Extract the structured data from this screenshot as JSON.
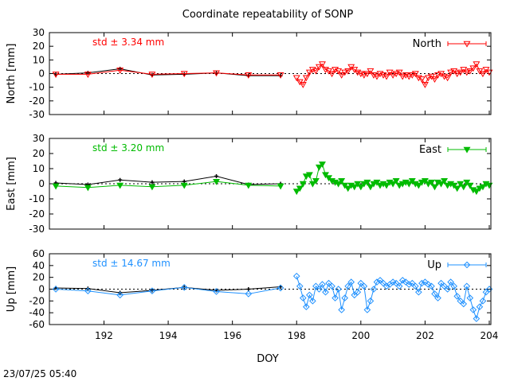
{
  "title": "Coordinate repeatability of SONP",
  "timestamp": "23/07/25 05:40",
  "xlabel": "DOY",
  "colors": {
    "north": "#ff0000",
    "east": "#00bb00",
    "up": "#1e90ff",
    "reference": "#000000"
  },
  "chart_data": [
    {
      "type": "line",
      "name": "North",
      "ylabel": "North [mm]",
      "legend": "North",
      "legend_position": "top-right",
      "std_label": "std ± 3.34 mm",
      "xlim": [
        190.3,
        204.05
      ],
      "ylim": [
        -30,
        30
      ],
      "xticks": [
        192,
        194,
        196,
        198,
        200,
        202,
        204
      ],
      "yticks": [
        -30,
        -20,
        -10,
        0,
        10,
        20,
        30
      ],
      "marker": "triangle-down",
      "reference_series": {
        "x": [
          190.5,
          191.5,
          192.5,
          193.5,
          194.5,
          195.5,
          196.5,
          197.5
        ],
        "y": [
          -0.5,
          0.5,
          3.5,
          -1.0,
          -0.5,
          0.5,
          -1.5,
          -1.5
        ]
      },
      "sparse_series": {
        "x": [
          190.5,
          191.5,
          192.5,
          193.5,
          194.5,
          195.5,
          196.5,
          197.5
        ],
        "y": [
          -0.5,
          -0.5,
          2.5,
          -0.5,
          0.0,
          0.5,
          -1.0,
          -1.0
        ]
      },
      "dense_series": {
        "x": [
          198.0,
          198.1,
          198.2,
          198.3,
          198.4,
          198.5,
          198.6,
          198.7,
          198.8,
          198.9,
          199.0,
          199.1,
          199.2,
          199.3,
          199.4,
          199.5,
          199.6,
          199.7,
          199.8,
          199.9,
          200.0,
          200.1,
          200.2,
          200.3,
          200.4,
          200.5,
          200.6,
          200.7,
          200.8,
          200.9,
          201.0,
          201.1,
          201.2,
          201.3,
          201.4,
          201.5,
          201.6,
          201.7,
          201.8,
          201.9,
          202.0,
          202.1,
          202.2,
          202.3,
          202.4,
          202.5,
          202.6,
          202.7,
          202.8,
          202.9,
          203.0,
          203.1,
          203.2,
          203.3,
          203.4,
          203.5,
          203.6,
          203.7,
          203.8,
          203.9,
          204.0
        ],
        "y": [
          -3,
          -6,
          -8,
          -3,
          1,
          3,
          2,
          5,
          7,
          3,
          2,
          0,
          3,
          2,
          -1,
          1,
          2,
          5,
          3,
          1,
          0,
          -1,
          0,
          2,
          -1,
          -2,
          0,
          -1,
          -2,
          1,
          -1,
          0,
          1,
          -2,
          -1,
          -2,
          -1,
          0,
          -3,
          -4,
          -8,
          -3,
          -2,
          -4,
          -1,
          0,
          -2,
          -3,
          1,
          2,
          0,
          1,
          3,
          1,
          2,
          4,
          7,
          2,
          0,
          3,
          1
        ]
      }
    },
    {
      "type": "line",
      "name": "East",
      "ylabel": "East [mm]",
      "legend": "East",
      "legend_position": "top-right",
      "std_label": "std ± 3.20 mm",
      "xlim": [
        190.3,
        204.05
      ],
      "ylim": [
        -30,
        30
      ],
      "xticks": [
        192,
        194,
        196,
        198,
        200,
        202,
        204
      ],
      "yticks": [
        -30,
        -20,
        -10,
        0,
        10,
        20,
        30
      ],
      "marker": "triangle-down-filled",
      "reference_series": {
        "x": [
          190.5,
          191.5,
          192.5,
          193.5,
          194.5,
          195.5,
          196.5,
          197.5
        ],
        "y": [
          0.5,
          -0.5,
          2.5,
          1.0,
          1.5,
          5.0,
          -0.5,
          0.0
        ]
      },
      "sparse_series": {
        "x": [
          190.5,
          191.5,
          192.5,
          193.5,
          194.5,
          195.5,
          196.5,
          197.5
        ],
        "y": [
          -1.5,
          -2.5,
          -1.0,
          -2.0,
          -1.0,
          1.5,
          -1.0,
          -1.5
        ]
      },
      "dense_series": {
        "x": [
          198.0,
          198.1,
          198.2,
          198.3,
          198.4,
          198.5,
          198.6,
          198.7,
          198.8,
          198.9,
          199.0,
          199.1,
          199.2,
          199.3,
          199.4,
          199.5,
          199.6,
          199.7,
          199.8,
          199.9,
          200.0,
          200.1,
          200.2,
          200.3,
          200.4,
          200.5,
          200.6,
          200.7,
          200.8,
          200.9,
          201.0,
          201.1,
          201.2,
          201.3,
          201.4,
          201.5,
          201.6,
          201.7,
          201.8,
          201.9,
          202.0,
          202.1,
          202.2,
          202.3,
          202.4,
          202.5,
          202.6,
          202.7,
          202.8,
          202.9,
          203.0,
          203.1,
          203.2,
          203.3,
          203.4,
          203.5,
          203.6,
          203.7,
          203.8,
          203.9,
          204.0
        ],
        "y": [
          -5,
          -3,
          0,
          5,
          6,
          0,
          2,
          11,
          13,
          6,
          4,
          2,
          1,
          0,
          2,
          -1,
          -3,
          -1,
          -2,
          0,
          -2,
          0,
          1,
          -2,
          0,
          1,
          -1,
          0,
          -1,
          1,
          0,
          2,
          -1,
          0,
          1,
          0,
          2,
          0,
          -1,
          1,
          2,
          0,
          1,
          -2,
          1,
          0,
          2,
          -1,
          0,
          -1,
          -3,
          0,
          -2,
          1,
          -1,
          -4,
          -5,
          -3,
          -2,
          0,
          -1
        ]
      }
    },
    {
      "type": "line",
      "name": "Up",
      "ylabel": "Up [mm]",
      "legend": "Up",
      "legend_position": "top-right",
      "std_label": "std ± 14.67 mm",
      "xlim": [
        190.3,
        204.05
      ],
      "ylim": [
        -60,
        60
      ],
      "xticks": [
        192,
        194,
        196,
        198,
        200,
        202,
        204
      ],
      "yticks": [
        -60,
        -40,
        -20,
        0,
        20,
        40,
        60
      ],
      "marker": "diamond-open",
      "reference_series": {
        "x": [
          190.5,
          191.5,
          192.5,
          193.5,
          194.5,
          195.5,
          196.5,
          197.5
        ],
        "y": [
          2,
          1,
          -6,
          -2,
          3,
          -2,
          0,
          4
        ]
      },
      "sparse_series": {
        "x": [
          190.5,
          191.5,
          192.5,
          193.5,
          194.5,
          195.5,
          196.5,
          197.5
        ],
        "y": [
          0,
          -3,
          -10,
          -3,
          3,
          -4,
          -8,
          2
        ]
      },
      "dense_series": {
        "x": [
          198.0,
          198.1,
          198.2,
          198.3,
          198.4,
          198.5,
          198.6,
          198.7,
          198.8,
          198.9,
          199.0,
          199.1,
          199.2,
          199.3,
          199.4,
          199.5,
          199.6,
          199.7,
          199.8,
          199.9,
          200.0,
          200.1,
          200.2,
          200.3,
          200.4,
          200.5,
          200.6,
          200.7,
          200.8,
          200.9,
          201.0,
          201.1,
          201.2,
          201.3,
          201.4,
          201.5,
          201.6,
          201.7,
          201.8,
          201.9,
          202.0,
          202.1,
          202.2,
          202.3,
          202.4,
          202.5,
          202.6,
          202.7,
          202.8,
          202.9,
          203.0,
          203.1,
          203.2,
          203.3,
          203.4,
          203.5,
          203.6,
          203.7,
          203.8,
          203.9,
          204.0
        ],
        "y": [
          22,
          5,
          -15,
          -30,
          -10,
          -20,
          5,
          0,
          8,
          -5,
          10,
          5,
          -15,
          0,
          -35,
          -15,
          5,
          12,
          -10,
          -5,
          10,
          5,
          -35,
          -20,
          0,
          12,
          15,
          10,
          5,
          8,
          12,
          10,
          5,
          15,
          12,
          8,
          10,
          5,
          -5,
          10,
          12,
          8,
          5,
          -8,
          -15,
          10,
          5,
          0,
          12,
          5,
          -12,
          -20,
          -25,
          5,
          -15,
          -35,
          -50,
          -30,
          -20,
          -5,
          0
        ]
      }
    }
  ]
}
